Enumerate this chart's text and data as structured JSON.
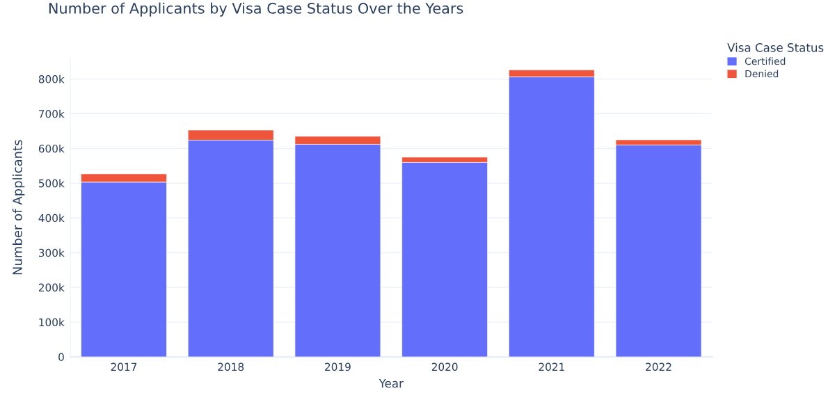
{
  "chart_data": {
    "type": "bar",
    "title": "Number of Applicants by Visa Case Status Over the Years",
    "xlabel": "Year",
    "ylabel": "Number of Applicants",
    "legend_title": "Visa Case Status",
    "categories": [
      "2017",
      "2018",
      "2019",
      "2020",
      "2021",
      "2022"
    ],
    "series": [
      {
        "name": "Certified",
        "color": "#636efa",
        "values": [
          503000,
          624000,
          612000,
          560000,
          806000,
          610000
        ]
      },
      {
        "name": "Denied",
        "color": "#ef553b",
        "values": [
          24000,
          29000,
          23000,
          15000,
          20000,
          15000
        ]
      }
    ],
    "stacked": true,
    "ylim": [
      0,
      860000
    ],
    "yticks": [
      0,
      {
        "value": 100000,
        "label": "100k"
      },
      {
        "value": 200000,
        "label": "200k"
      },
      {
        "value": 300000,
        "label": "300k"
      },
      {
        "value": 400000,
        "label": "400k"
      },
      {
        "value": 500000,
        "label": "500k"
      },
      {
        "value": 600000,
        "label": "600k"
      },
      {
        "value": 700000,
        "label": "700k"
      },
      {
        "value": 800000,
        "label": "800k"
      }
    ],
    "grid": "y",
    "legend": "top right"
  }
}
